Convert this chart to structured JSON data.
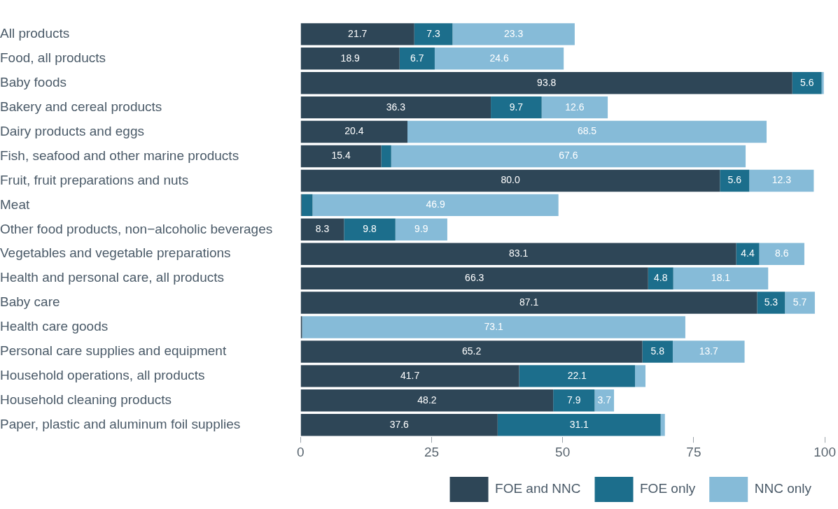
{
  "chart_data": {
    "type": "bar",
    "orientation": "horizontal",
    "stacked": true,
    "categories": [
      "All products",
      "Food, all products",
      "Baby foods",
      "Bakery and cereal products",
      "Dairy products and eggs",
      "Fish, seafood and other marine products",
      "Fruit, fruit preparations and nuts",
      "Meat",
      "Other food products, non−alcoholic beverages",
      "Vegetables and vegetable preparations",
      "Health and personal care, all products",
      "Baby care",
      "Health care goods",
      "Personal care supplies and equipment",
      "Household operations, all products",
      "Household cleaning products",
      "Paper, plastic and aluminum foil supplies"
    ],
    "series": [
      {
        "name": "FOE and NNC",
        "color": "#2e4657",
        "values": [
          21.7,
          18.9,
          93.8,
          36.3,
          20.4,
          15.4,
          80.0,
          0.2,
          8.3,
          83.1,
          66.3,
          87.1,
          0.3,
          65.2,
          41.7,
          48.2,
          37.6
        ],
        "value_labels": [
          "21.7",
          "18.9",
          "93.8",
          "36.3",
          "20.4",
          "15.4",
          "80.0",
          null,
          "8.3",
          "83.1",
          "66.3",
          "87.1",
          null,
          "65.2",
          "41.7",
          "48.2",
          "37.6"
        ]
      },
      {
        "name": "FOE only",
        "color": "#1c6e8c",
        "values": [
          7.3,
          6.7,
          5.6,
          9.7,
          0,
          1.9,
          5.6,
          2.1,
          9.8,
          4.4,
          4.8,
          5.3,
          0,
          5.8,
          22.1,
          7.9,
          31.1
        ],
        "value_labels": [
          "7.3",
          "6.7",
          "5.6",
          "9.7",
          null,
          null,
          "5.6",
          null,
          "9.8",
          "4.4",
          "4.8",
          "5.3",
          null,
          "5.8",
          "22.1",
          "7.9",
          "31.1"
        ]
      },
      {
        "name": "NNC only",
        "color": "#86bbd8",
        "values": [
          23.3,
          24.6,
          0.4,
          12.6,
          68.5,
          67.6,
          12.3,
          46.9,
          9.9,
          8.6,
          18.1,
          5.7,
          73.1,
          13.7,
          2.0,
          3.7,
          0.8
        ],
        "value_labels": [
          "23.3",
          "24.6",
          null,
          "12.6",
          "68.5",
          "67.6",
          "12.3",
          "46.9",
          "9.9",
          "8.6",
          "18.1",
          "5.7",
          "73.1",
          "13.7",
          null,
          "3.7",
          null
        ]
      }
    ],
    "xlim": [
      0,
      100
    ],
    "xticks": [
      0,
      25,
      50,
      75,
      100
    ],
    "grid": false,
    "legend": "bottom right"
  }
}
